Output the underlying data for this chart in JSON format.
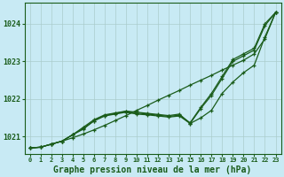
{
  "background_color": "#c8eaf4",
  "grid_color": "#aacccc",
  "line_color": "#1a5c1a",
  "marker_color": "#1a5c1a",
  "xlabel": "Graphe pression niveau de la mer (hPa)",
  "xlabel_fontsize": 7,
  "ylabel_ticks": [
    1021,
    1022,
    1023,
    1024
  ],
  "xlim": [
    -0.5,
    23.5
  ],
  "ylim": [
    1020.55,
    1024.55
  ],
  "hours": [
    0,
    1,
    2,
    3,
    4,
    5,
    6,
    7,
    8,
    9,
    10,
    11,
    12,
    13,
    14,
    15,
    16,
    17,
    18,
    19,
    20,
    21,
    22,
    23
  ],
  "series_straight": [
    1020.7,
    1020.72,
    1020.8,
    1020.88,
    1020.97,
    1021.07,
    1021.18,
    1021.3,
    1021.43,
    1021.56,
    1021.7,
    1021.83,
    1021.97,
    1022.1,
    1022.23,
    1022.37,
    1022.5,
    1022.63,
    1022.77,
    1022.9,
    1023.03,
    1023.2,
    1023.6,
    1024.3
  ],
  "series_dip1": [
    1020.7,
    1020.72,
    1020.8,
    1020.88,
    1021.05,
    1021.2,
    1021.42,
    1021.55,
    1021.6,
    1021.65,
    1021.6,
    1021.58,
    1021.55,
    1021.52,
    1021.55,
    1021.35,
    1021.75,
    1022.1,
    1022.55,
    1023.0,
    1023.15,
    1023.3,
    1023.95,
    1024.3
  ],
  "series_dip2": [
    1020.7,
    1020.72,
    1020.8,
    1020.88,
    1021.05,
    1021.22,
    1021.42,
    1021.56,
    1021.62,
    1021.67,
    1021.63,
    1021.6,
    1021.57,
    1021.54,
    1021.57,
    1021.37,
    1021.78,
    1022.15,
    1022.6,
    1023.05,
    1023.2,
    1023.35,
    1024.0,
    1024.3
  ],
  "series_wide": [
    1020.7,
    1020.72,
    1020.8,
    1020.88,
    1021.05,
    1021.25,
    1021.45,
    1021.58,
    1021.63,
    1021.68,
    1021.65,
    1021.62,
    1021.59,
    1021.56,
    1021.6,
    1021.35,
    1021.5,
    1021.7,
    1022.15,
    1022.45,
    1022.7,
    1022.9,
    1023.65,
    1024.3
  ]
}
